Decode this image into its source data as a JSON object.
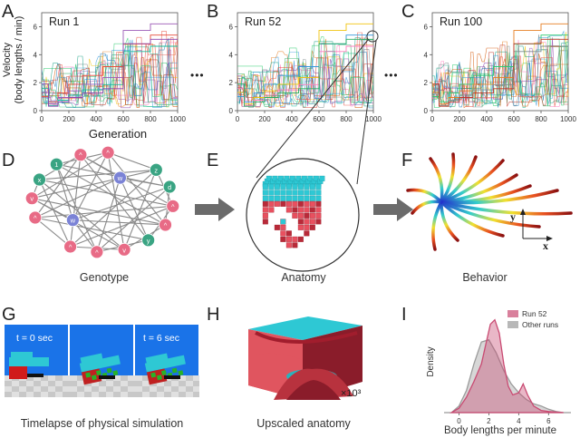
{
  "panels": {
    "A": "A",
    "B": "B",
    "C": "C",
    "D": "D",
    "E": "E",
    "F": "F",
    "G": "G",
    "H": "H",
    "I": "I"
  },
  "runs": {
    "ylabel_line1": "Velocity",
    "ylabel_line2": "(body lengths / min)",
    "xlabel": "Generation",
    "ellipsis": "•••",
    "titles": [
      "Run 1",
      "Run 52",
      "Run 100"
    ],
    "yticks": [
      "0",
      "2",
      "4",
      "6"
    ],
    "xticks": [
      "0",
      "200",
      "400",
      "600",
      "800",
      "1000"
    ]
  },
  "genotype": {
    "caption": "Genotype",
    "node_labels": [
      "x",
      "1",
      "^",
      "^",
      "w",
      "z",
      "d",
      "^",
      "^",
      "y",
      "v",
      "^",
      "^",
      "w",
      "^",
      "v"
    ]
  },
  "anatomy": {
    "caption": "Anatomy"
  },
  "behavior": {
    "caption": "Behavior",
    "axis_y": "y",
    "axis_x": "x"
  },
  "simulation": {
    "caption": "Timelapse of physical simulation",
    "t0": "t = 0 sec",
    "t6": "t = 6 sec"
  },
  "upscaled": {
    "caption": "Upscaled anatomy",
    "scale": "×10³"
  },
  "chart_data": {
    "type": "area",
    "xlabel": "Body lengths per minute",
    "ylabel": "Density",
    "xticks": [
      "0",
      "2",
      "4",
      "6"
    ],
    "xlim": [
      -1,
      7.5
    ],
    "series": [
      {
        "name": "Run 52",
        "color": "#c94a72",
        "x": [
          -0.5,
          0,
          0.5,
          1,
          1.5,
          1.8,
          2.1,
          2.4,
          2.7,
          3.0,
          3.3,
          3.6,
          4.0,
          4.3,
          4.6,
          5.0,
          5.5,
          6,
          7
        ],
        "y": [
          0,
          0.02,
          0.07,
          0.14,
          0.22,
          0.31,
          0.4,
          0.42,
          0.36,
          0.22,
          0.12,
          0.08,
          0.09,
          0.13,
          0.08,
          0.03,
          0.01,
          0.005,
          0
        ]
      },
      {
        "name": "Other runs",
        "color": "#9a9a9a",
        "x": [
          -0.5,
          0,
          0.5,
          1,
          1.5,
          2.0,
          2.5,
          3.0,
          3.5,
          4.0,
          4.5,
          5.0,
          5.5,
          6.0,
          6.5,
          7
        ],
        "y": [
          0,
          0.03,
          0.1,
          0.22,
          0.32,
          0.33,
          0.27,
          0.19,
          0.13,
          0.09,
          0.06,
          0.04,
          0.03,
          0.015,
          0.005,
          0
        ]
      }
    ]
  }
}
